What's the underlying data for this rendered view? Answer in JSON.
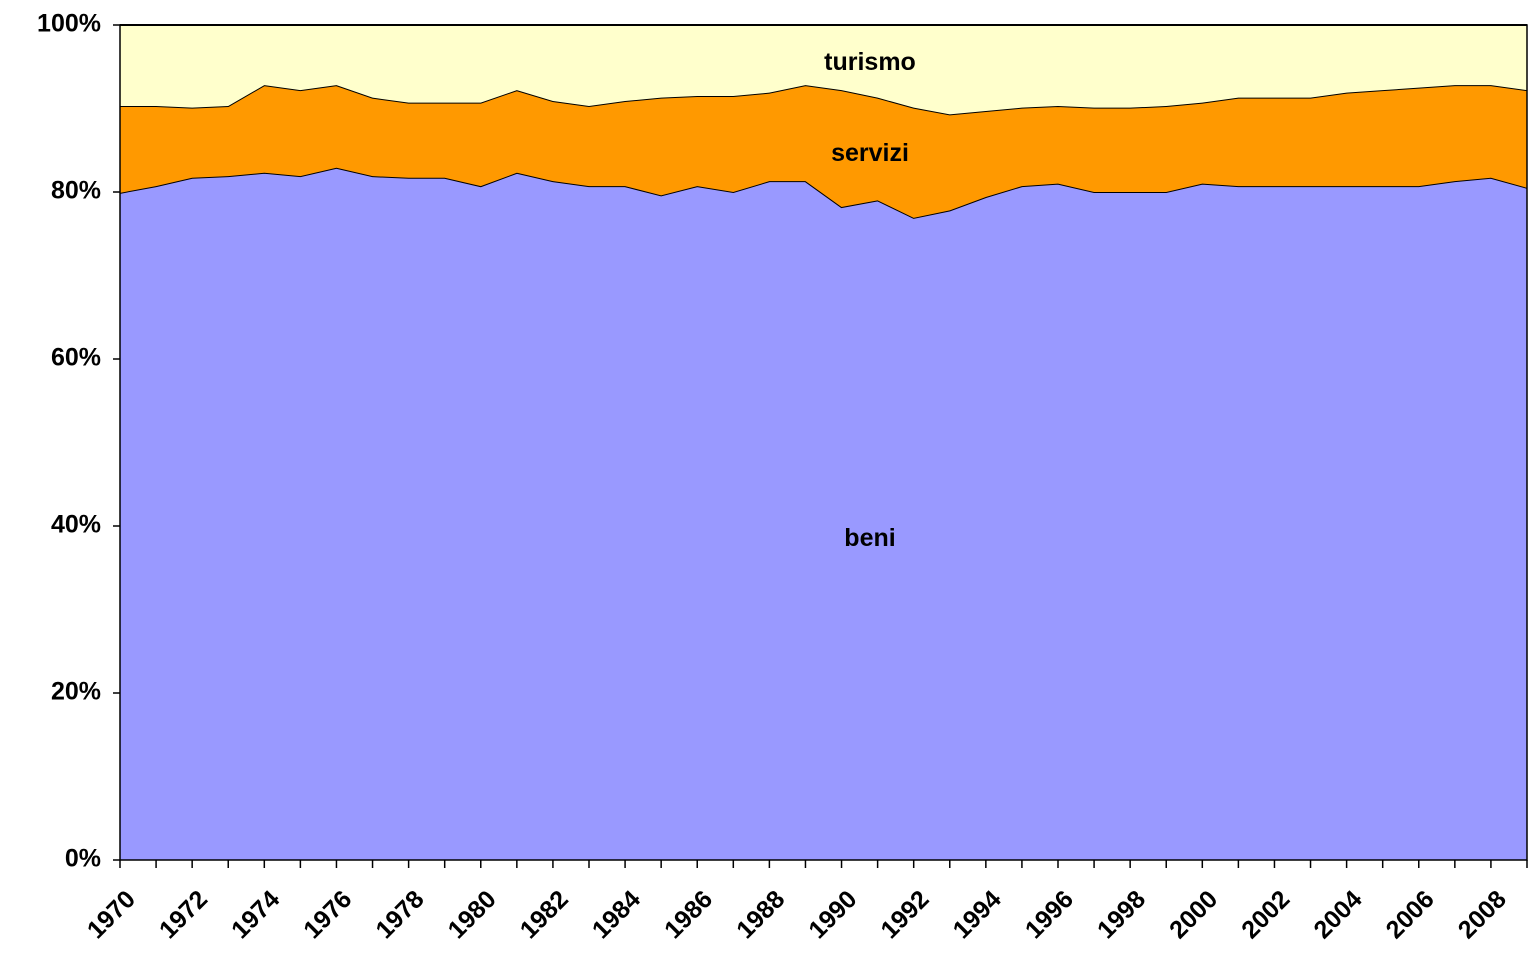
{
  "chart_data": {
    "type": "stacked_area",
    "categories": [
      "1970",
      null,
      "1972",
      null,
      "1974",
      null,
      "1976",
      null,
      "1978",
      null,
      "1980",
      null,
      "1982",
      null,
      "1984",
      null,
      "1986",
      null,
      "1988",
      null,
      "1990",
      null,
      "1992",
      null,
      "1994",
      null,
      "1996",
      null,
      "1998",
      null,
      "2000",
      null,
      "2002",
      null,
      "2004",
      null,
      "2006",
      null,
      "2008",
      null
    ],
    "series": [
      {
        "name": "beni",
        "color": "#9999ff",
        "values": [
          79.9,
          80.7,
          81.7,
          81.9,
          82.3,
          81.9,
          82.9,
          81.9,
          81.7,
          81.7,
          80.7,
          82.3,
          81.3,
          80.7,
          80.7,
          79.6,
          80.7,
          80.0,
          81.3,
          81.3,
          78.2,
          79.0,
          76.9,
          77.8,
          79.4,
          80.7,
          81.0,
          80.0,
          80.0,
          80.0,
          81.0,
          80.7,
          80.7,
          80.7,
          80.7,
          80.7,
          80.7,
          81.3,
          81.7,
          80.5
        ]
      },
      {
        "name": "servizi",
        "color": "#ff9900",
        "values": [
          10.4,
          9.6,
          8.4,
          8.4,
          10.5,
          10.3,
          9.9,
          9.4,
          9.0,
          9.0,
          10.0,
          9.9,
          9.6,
          9.6,
          10.2,
          11.7,
          10.8,
          11.5,
          10.6,
          11.5,
          14.0,
          12.3,
          13.2,
          11.5,
          10.3,
          9.4,
          9.3,
          10.1,
          10.1,
          10.3,
          9.7,
          10.6,
          10.6,
          10.6,
          11.2,
          11.5,
          11.8,
          11.5,
          11.1,
          11.7
        ]
      },
      {
        "name": "turismo",
        "color": "#ffffcc",
        "values": [
          9.7,
          9.7,
          9.9,
          9.7,
          7.2,
          7.8,
          7.2,
          8.7,
          9.3,
          9.3,
          9.3,
          7.8,
          9.1,
          9.7,
          9.1,
          8.7,
          8.5,
          8.5,
          8.1,
          7.2,
          7.8,
          8.7,
          9.9,
          10.7,
          10.3,
          9.9,
          9.7,
          9.9,
          9.9,
          9.7,
          9.3,
          8.7,
          8.7,
          8.7,
          8.1,
          7.8,
          7.5,
          7.2,
          7.2,
          7.8
        ]
      }
    ],
    "ylim": [
      0,
      100
    ],
    "yticks": [
      {
        "value": 0,
        "label": "0%"
      },
      {
        "value": 20,
        "label": "20%"
      },
      {
        "value": 40,
        "label": "40%"
      },
      {
        "value": 60,
        "label": "60%"
      },
      {
        "value": 80,
        "label": "80%"
      },
      {
        "value": 100,
        "label": "100%"
      }
    ]
  }
}
